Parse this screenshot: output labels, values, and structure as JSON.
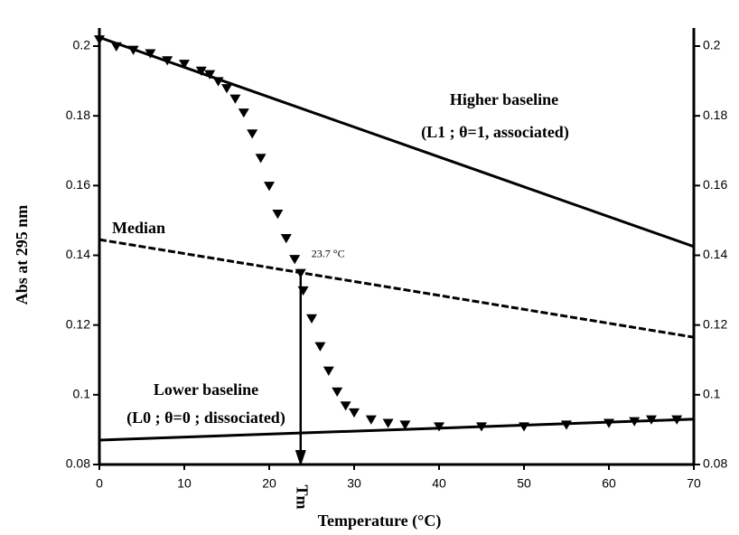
{
  "chart_data": {
    "type": "line",
    "x_label": "Temperature (°C)",
    "y_label": "Abs at 295 nm",
    "xlim": [
      0,
      70
    ],
    "xticks": [
      0,
      10,
      20,
      30,
      40,
      50,
      60,
      70
    ],
    "ylim": [
      0.08,
      0.2
    ],
    "yticks": [
      0.08,
      0.1,
      0.12,
      0.14,
      0.16,
      0.18,
      0.2
    ],
    "y2lim": [
      0.08,
      0.2
    ],
    "y2ticks": [
      0.08,
      0.1,
      0.12,
      0.14,
      0.16,
      0.18,
      0.2
    ],
    "grid": false,
    "series": [
      {
        "style": "markers",
        "color": "#000000",
        "x": [
          0,
          2,
          4,
          6,
          8,
          10,
          12,
          13,
          14,
          15,
          16,
          17,
          18,
          19,
          20,
          21,
          22,
          23,
          23.7,
          24,
          25,
          26,
          27,
          28,
          29,
          30,
          32,
          34,
          36,
          40,
          45,
          50,
          55,
          60,
          63,
          65,
          68
        ],
        "values": [
          0.202,
          0.2,
          0.199,
          0.198,
          0.196,
          0.195,
          0.193,
          0.192,
          0.19,
          0.188,
          0.185,
          0.181,
          0.175,
          0.168,
          0.16,
          0.152,
          0.145,
          0.139,
          0.135,
          0.13,
          0.122,
          0.114,
          0.107,
          0.101,
          0.097,
          0.095,
          0.093,
          0.092,
          0.0915,
          0.091,
          0.091,
          0.091,
          0.0915,
          0.092,
          0.0925,
          0.093,
          0.093
        ]
      },
      {
        "style": "solid",
        "color": "#000000",
        "x": [
          0,
          70
        ],
        "values": [
          0.2025,
          0.1425
        ]
      },
      {
        "style": "dashed",
        "color": "#000000",
        "x": [
          0,
          70
        ],
        "values": [
          0.1445,
          0.1165
        ]
      },
      {
        "style": "solid",
        "color": "#000000",
        "x": [
          0,
          70
        ],
        "values": [
          0.087,
          0.093
        ]
      }
    ],
    "tm": {
      "x": 23.7,
      "y": 0.135
    },
    "annotations": [
      "Higher baseline",
      "(L1 ; θ=1, associated)",
      "Median",
      "Lower baseline",
      "(L0 ; θ=0 ; dissociated)",
      "23.7 °C",
      "Tm"
    ]
  }
}
